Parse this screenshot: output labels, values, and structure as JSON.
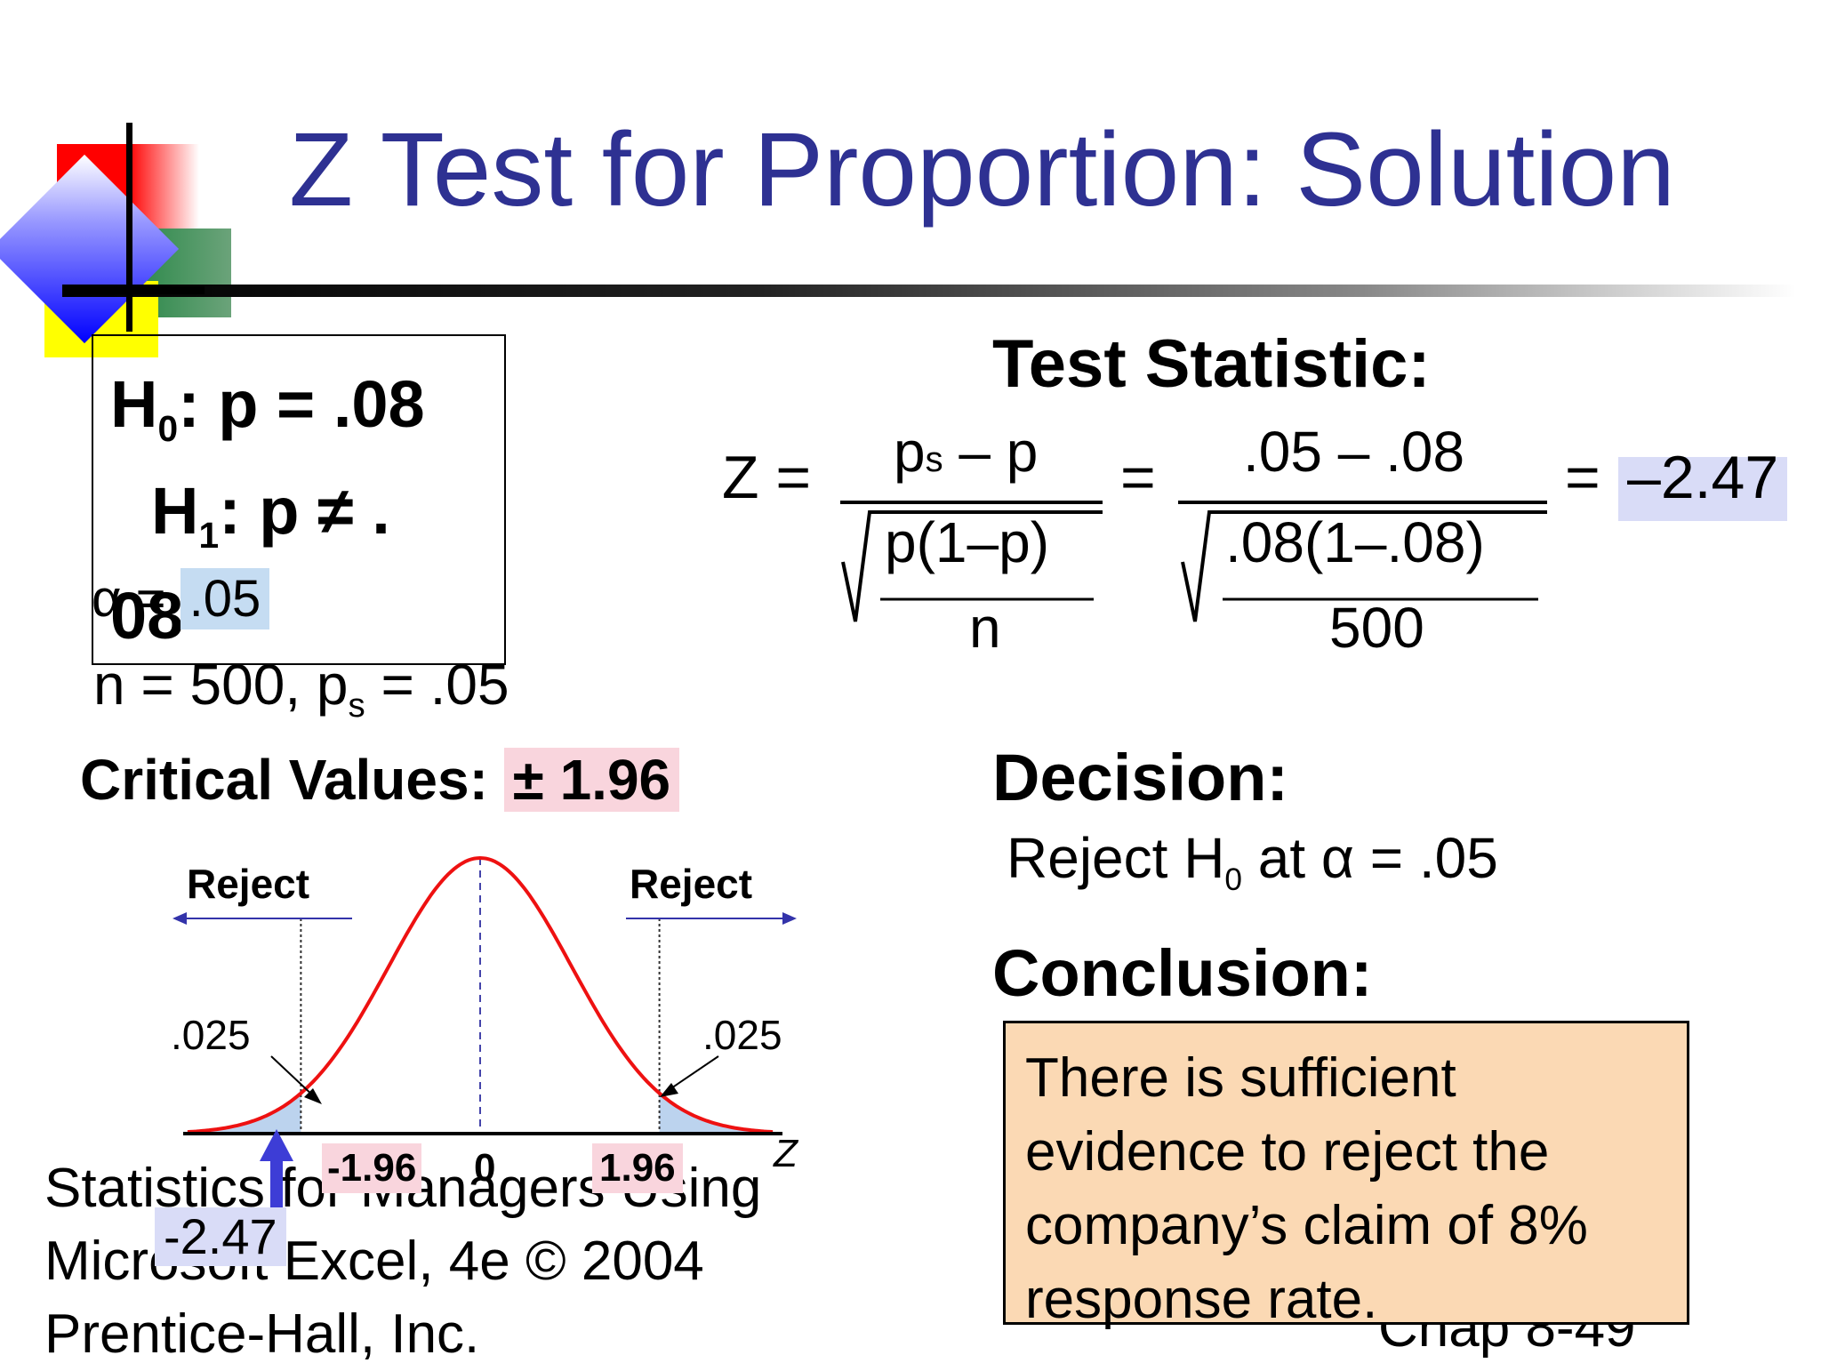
{
  "title": "Z Test for Proportion: Solution",
  "hypotheses": {
    "h0_label": "H",
    "h0_sub": "0",
    "h0_rest": ": p = .08",
    "h1_label": "H",
    "h1_sub": "1",
    "h1_rest": ": p ≠ .",
    "h1_cont": "08",
    "alpha_label": "α =",
    "alpha_value": ".05",
    "n_text": "n = 500,   p",
    "ps_sub": "s",
    "ps_value": " = .05"
  },
  "critical": {
    "label": "Critical Values: ",
    "value": "± 1.96"
  },
  "test_statistic": {
    "heading": "Test Statistic:",
    "z_label": "Z =",
    "num_symbolic_p": "p",
    "num_symbolic_sub": "s",
    "num_symbolic_rest": "– p",
    "den_symbolic_top": "p(1–p)",
    "den_symbolic_bottom": "n",
    "eq": "=",
    "num_numeric": ".05 – .08",
    "den_numeric_top": ".08(1–.08)",
    "den_numeric_bottom": "500",
    "result": "–2.47"
  },
  "decision": {
    "heading": "Decision:",
    "text_pre": "Reject H",
    "text_sub": "0",
    "text_post": " at α = .05"
  },
  "conclusion": {
    "heading": "Conclusion:",
    "lines": [
      "There is sufficient",
      "evidence to reject the",
      "company’s claim of 8%",
      "response rate."
    ]
  },
  "chart": {
    "reject_left": "Reject",
    "reject_right": "Reject",
    "tail_left": ".025",
    "tail_right": ".025",
    "crit_left": "-1.96",
    "crit_center": "0",
    "crit_right": "1.96",
    "axis_label": "Z",
    "observed": "-2.47",
    "colors": {
      "curve": "#ee1111",
      "tail": "#bcd3ee",
      "crit_highlight": "#f9d5dd",
      "observed_highlight": "#d9dcf7",
      "arrow": "#3d3dd6"
    }
  },
  "chart_data": {
    "type": "area",
    "title": "",
    "distribution": "standard normal",
    "critical_values": [
      -1.96,
      1.96
    ],
    "tail_areas": [
      0.025,
      0.025
    ],
    "observed_z": -2.47,
    "xlabel": "Z"
  },
  "footer": {
    "lines": "Statistics for Managers Using\nMicrosoft Excel, 4e © 2004\nPrentice-Hall, Inc.",
    "chap": "Chap 8-49"
  }
}
